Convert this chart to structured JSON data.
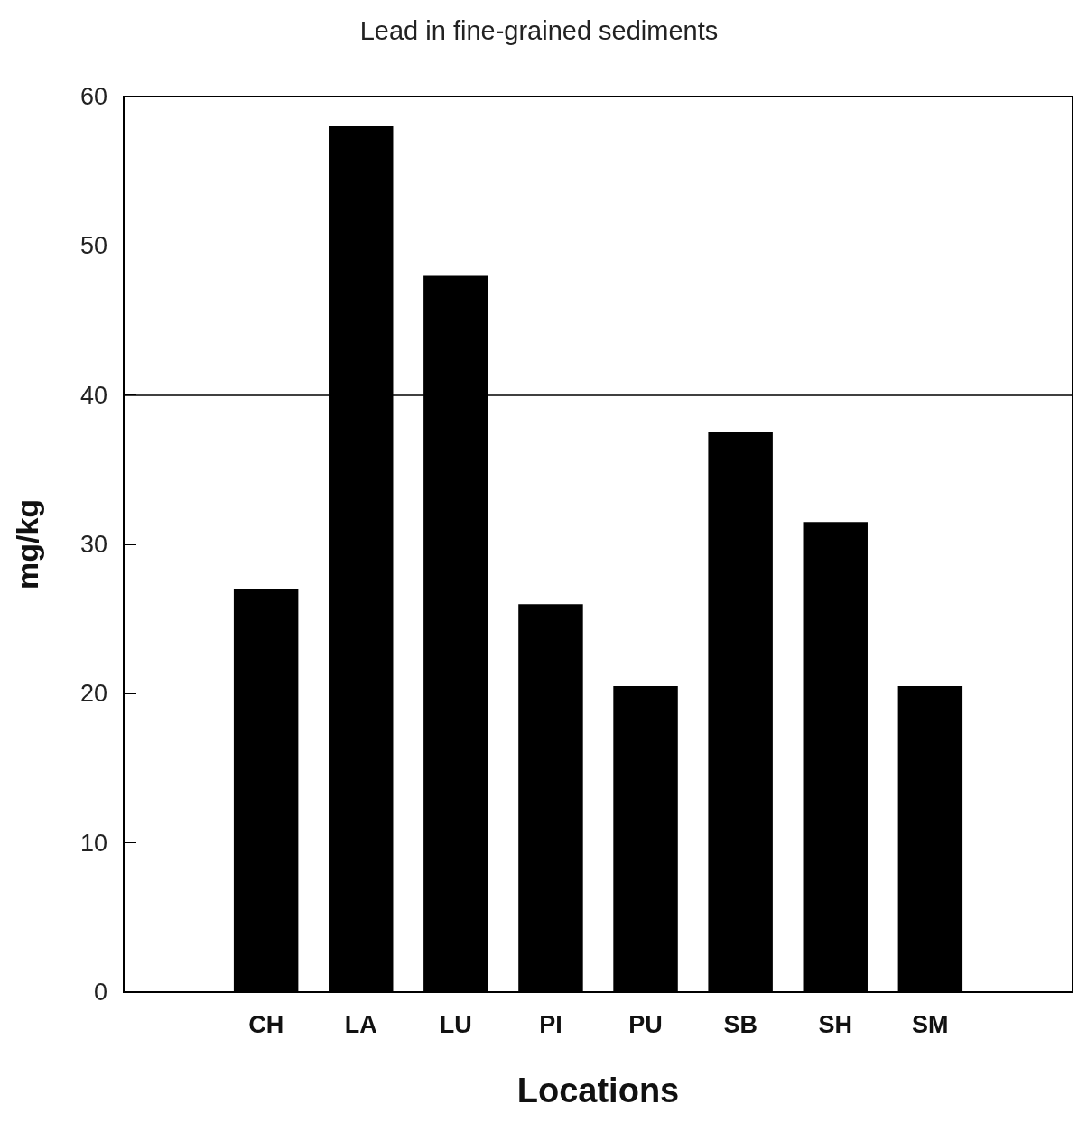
{
  "chart_data": {
    "type": "bar",
    "title": "Lead in fine-grained sediments",
    "xlabel": "Locations",
    "ylabel": "mg/kg",
    "categories": [
      null,
      "CH",
      "LA",
      "LU",
      "PI",
      "PU",
      "SB",
      "SH",
      "SM",
      null
    ],
    "values": [
      null,
      27,
      58,
      48,
      26,
      20.5,
      37.5,
      31.5,
      20.5,
      null
    ],
    "color": "#000000",
    "ylim": [
      0,
      60
    ],
    "yticks": [
      0,
      10,
      20,
      30,
      40,
      50,
      60
    ],
    "grid": false,
    "ref_lines": [
      {
        "axis": "y",
        "value": 40,
        "color": "#000000"
      }
    ]
  }
}
